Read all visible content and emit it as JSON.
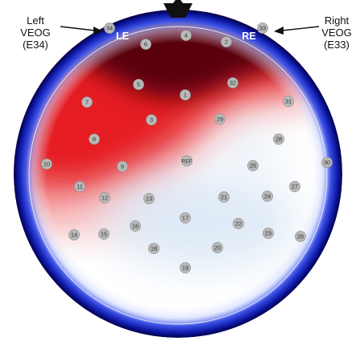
{
  "left_label": {
    "line1": "Left",
    "line2": "VEOG",
    "line3": "(E34)"
  },
  "right_label": {
    "line1": "Right",
    "line2": "VEOG",
    "line3": "(E33)"
  },
  "eye_labels": {
    "left": "LE",
    "right": "RE"
  },
  "colors": {
    "positive_strong": "#5a0008",
    "positive": "#d8101c",
    "neutral": "#ffffff",
    "negative": "#1f2fd6",
    "negative_strong": "#00004a",
    "electrode_fill": "#b9b9b9"
  },
  "electrodes": [
    {
      "id": "1"
    },
    {
      "id": "2"
    },
    {
      "id": "3"
    },
    {
      "id": "4"
    },
    {
      "id": "5"
    },
    {
      "id": "6"
    },
    {
      "id": "7"
    },
    {
      "id": "8"
    },
    {
      "id": "9"
    },
    {
      "id": "10"
    },
    {
      "id": "11"
    },
    {
      "id": "12"
    },
    {
      "id": "13"
    },
    {
      "id": "14"
    },
    {
      "id": "15"
    },
    {
      "id": "16"
    },
    {
      "id": "17"
    },
    {
      "id": "18"
    },
    {
      "id": "19"
    },
    {
      "id": "20"
    },
    {
      "id": "21"
    },
    {
      "id": "22"
    },
    {
      "id": "23"
    },
    {
      "id": "24"
    },
    {
      "id": "25"
    },
    {
      "id": "26"
    },
    {
      "id": "27"
    },
    {
      "id": "28"
    },
    {
      "id": "29"
    },
    {
      "id": "30"
    },
    {
      "id": "31"
    },
    {
      "id": "32"
    },
    {
      "id": "33"
    },
    {
      "id": "34"
    },
    {
      "id": "REF"
    }
  ]
}
